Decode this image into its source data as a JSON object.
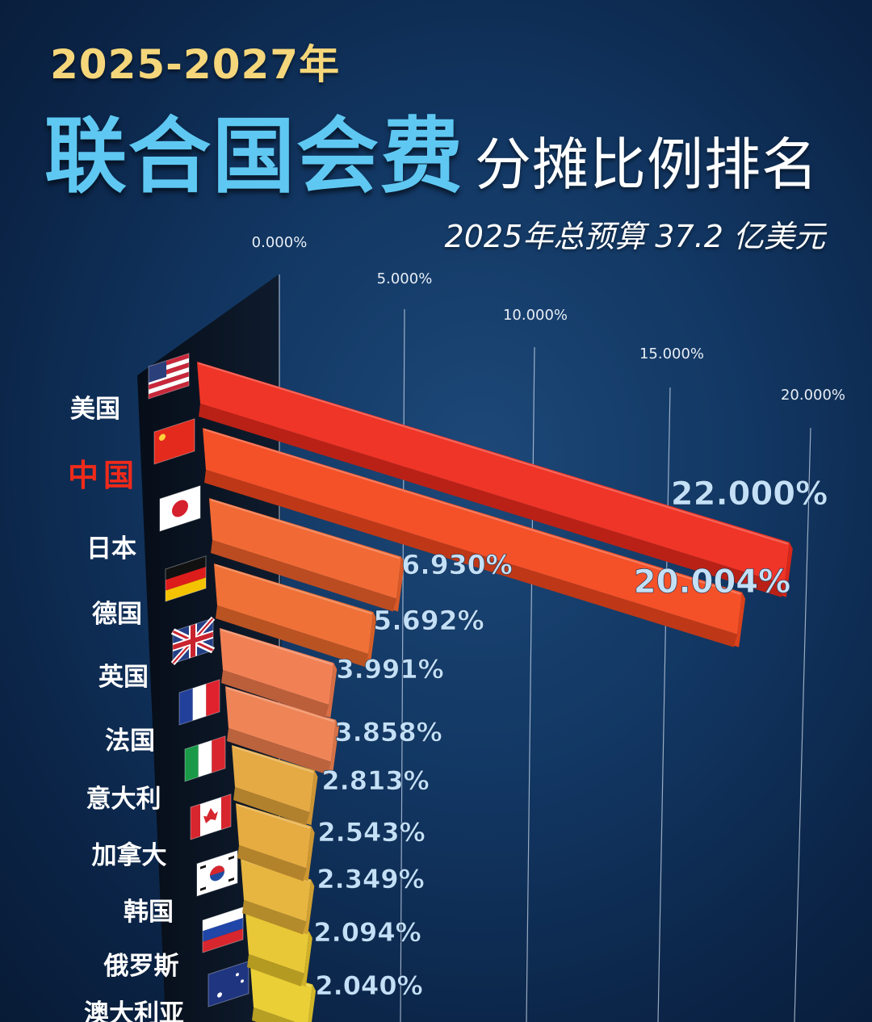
{
  "header": {
    "years": "2025-2027年",
    "title_main": "联合国会费",
    "title_sub": "分摊比例排名",
    "budget_note": "2025年总预算 37.2 亿美元"
  },
  "chart_data": {
    "type": "bar",
    "orientation": "horizontal",
    "title": "联合国会费分摊比例排名",
    "xlim": [
      0,
      20
    ],
    "x_ticks": [
      "0.000%",
      "5.000%",
      "10.000%",
      "15.000%",
      "20.000%"
    ],
    "grid": true,
    "categories": [
      "美国",
      "中国",
      "日本",
      "德国",
      "英国",
      "法国",
      "意大利",
      "加拿大",
      "韩国",
      "俄罗斯",
      "澳大利亚"
    ],
    "values": [
      22.0,
      20.004,
      6.93,
      5.692,
      3.991,
      3.858,
      2.813,
      2.543,
      2.349,
      2.094,
      2.04
    ],
    "value_labels": [
      "22.000%",
      "20.004%",
      "6.930%",
      "5.692%",
      "3.991%",
      "3.858%",
      "2.813%",
      "2.543%",
      "2.349%",
      "2.094%",
      "2.040%"
    ],
    "highlight": "中国",
    "flags": [
      "us-flag-icon",
      "cn-flag-icon",
      "jp-flag-icon",
      "de-flag-icon",
      "gb-flag-icon",
      "fr-flag-icon",
      "it-flag-icon",
      "ca-flag-icon",
      "kr-flag-icon",
      "ru-flag-icon",
      "au-flag-icon"
    ],
    "bar_colors": [
      "#ee2a1c",
      "#f3481e",
      "#f0622a",
      "#ee6a2c",
      "#f07a4c",
      "#ee7f4e",
      "#e4a63a",
      "#e5a837",
      "#e6b236",
      "#e8c52c",
      "#e9cc2c"
    ]
  }
}
